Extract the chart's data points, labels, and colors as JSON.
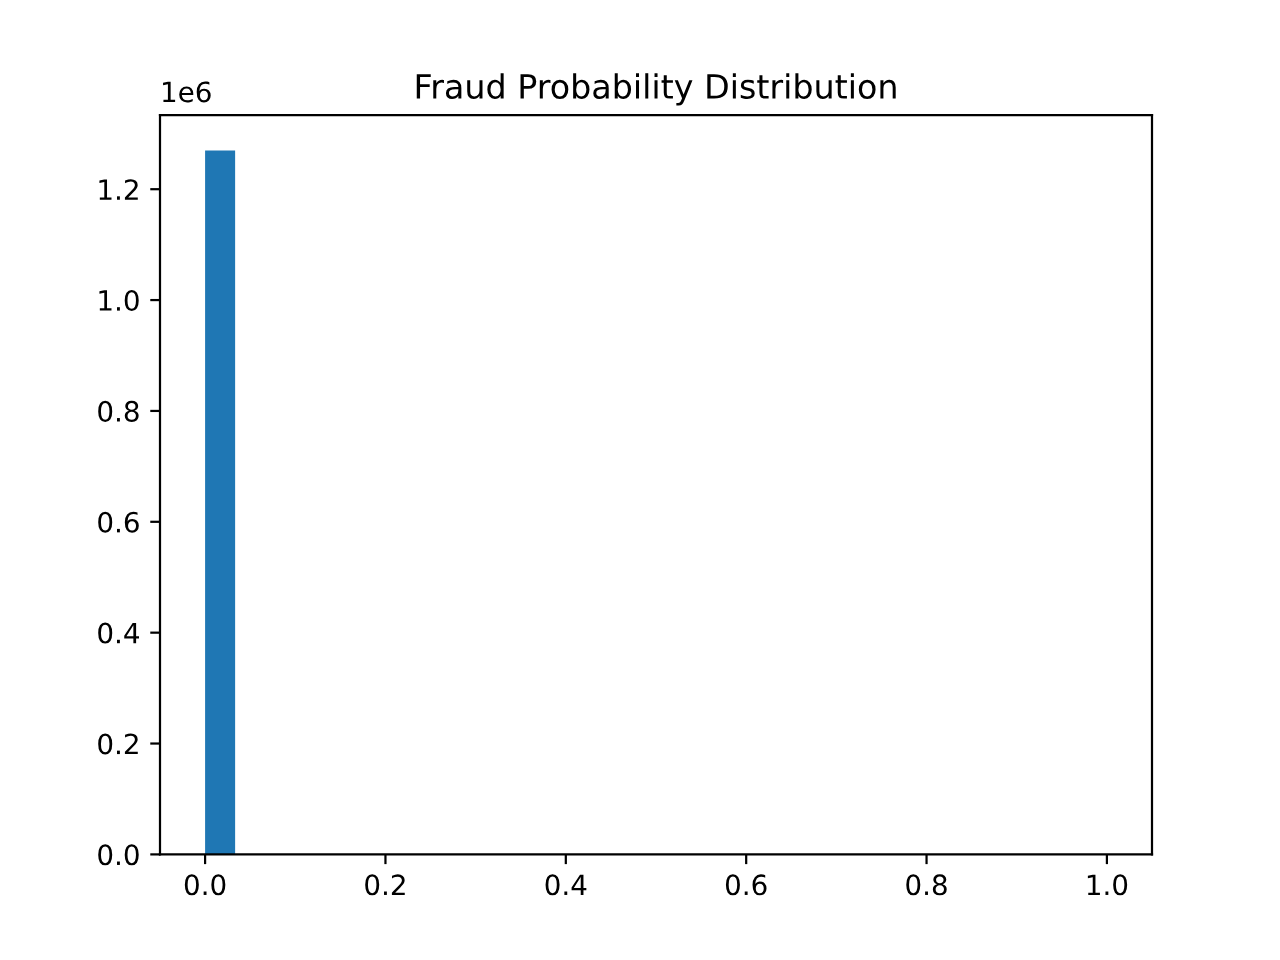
{
  "chart_data": {
    "type": "histogram",
    "title": "Fraud Probability Distribution",
    "bins": [
      0,
      0.0333,
      0.0667,
      0.1,
      0.1333,
      0.1667,
      0.2,
      0.2333,
      0.2667,
      0.3,
      0.3333,
      0.3667,
      0.4,
      0.4333,
      0.4667,
      0.5,
      0.5333,
      0.5667,
      0.6,
      0.6333,
      0.6667,
      0.7,
      0.7333,
      0.7667,
      0.8,
      0.8333,
      0.8667,
      0.9,
      0.9333,
      0.9667,
      1.0
    ],
    "values": [
      1.27,
      0,
      0,
      0,
      0,
      0,
      0,
      0,
      0,
      0,
      0,
      0,
      0,
      0,
      0,
      0,
      0,
      0,
      0,
      0,
      0,
      0,
      0,
      0,
      0,
      0,
      0,
      0,
      0,
      0
    ],
    "color": "#1f77b4",
    "xlim": [
      -0.05,
      1.05
    ],
    "xticks": [
      {
        "value": 0,
        "label": "0.0"
      },
      0.2,
      0.4,
      0.6,
      0.8,
      {
        "value": 1,
        "label": "1.0"
      }
    ],
    "ylim": [
      0,
      1.3335
    ],
    "yticks": [
      {
        "value": 0,
        "label": "0.0"
      },
      0.2,
      0.4,
      0.6,
      0.8,
      {
        "value": 1,
        "label": "1.0"
      },
      1.2
    ],
    "annotations": [
      "1e6"
    ],
    "grid": false
  }
}
